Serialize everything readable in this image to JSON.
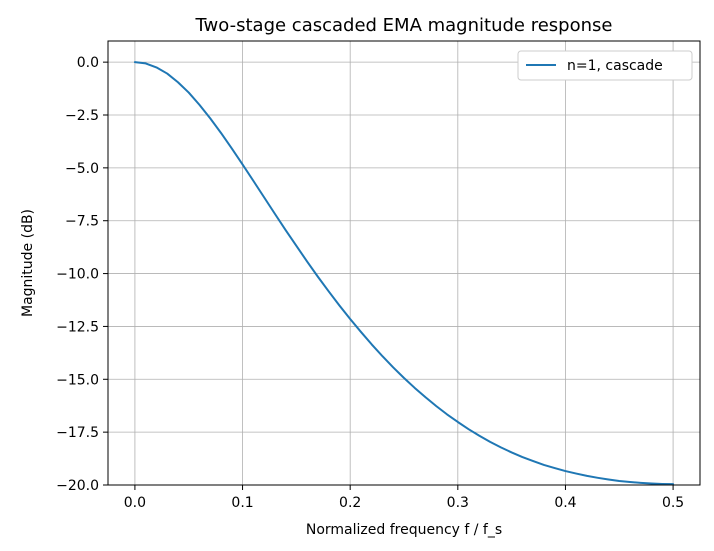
{
  "chart_data": {
    "type": "line",
    "title": "Two-stage cascaded EMA magnitude response",
    "xlabel": "Normalized frequency  f / f_s",
    "ylabel": "Magnitude (dB)",
    "xlim": [
      -0.025,
      0.525
    ],
    "ylim": [
      -20.0,
      1.0
    ],
    "x_ticks": [
      0.0,
      0.1,
      0.2,
      0.3,
      0.4,
      0.5
    ],
    "x_tick_labels": [
      "0.0",
      "0.1",
      "0.2",
      "0.3",
      "0.4",
      "0.5"
    ],
    "y_ticks": [
      0.0,
      -2.5,
      -5.0,
      -7.5,
      -10.0,
      -12.5,
      -15.0,
      -17.5,
      -20.0
    ],
    "y_tick_labels": [
      "0.0",
      "−2.5",
      "−5.0",
      "−7.5",
      "−10.0",
      "−12.5",
      "−15.0",
      "−17.5",
      "−20.0"
    ],
    "grid": true,
    "legend": {
      "position": "top-right",
      "entries": [
        "n=1, cascade"
      ]
    },
    "series": [
      {
        "name": "n=1, cascade",
        "color": "#1f77b4",
        "x": [
          0.0,
          0.01,
          0.02,
          0.03,
          0.04,
          0.05,
          0.06,
          0.07,
          0.08,
          0.09,
          0.1,
          0.11,
          0.12,
          0.13,
          0.14,
          0.15,
          0.16,
          0.17,
          0.18,
          0.19,
          0.2,
          0.21,
          0.22,
          0.23,
          0.24,
          0.25,
          0.26,
          0.27,
          0.28,
          0.29,
          0.3,
          0.31,
          0.32,
          0.33,
          0.34,
          0.35,
          0.36,
          0.37,
          0.38,
          0.39,
          0.4,
          0.41,
          0.42,
          0.43,
          0.44,
          0.45,
          0.46,
          0.47,
          0.48,
          0.49,
          0.5
        ],
        "y": [
          0.0,
          -0.06,
          -0.25,
          -0.54,
          -0.95,
          -1.44,
          -2.02,
          -2.66,
          -3.35,
          -4.08,
          -4.84,
          -5.61,
          -6.39,
          -7.17,
          -7.94,
          -8.69,
          -9.43,
          -10.15,
          -10.84,
          -11.51,
          -12.15,
          -12.76,
          -13.35,
          -13.91,
          -14.44,
          -14.94,
          -15.41,
          -15.85,
          -16.27,
          -16.66,
          -17.02,
          -17.36,
          -17.67,
          -17.96,
          -18.22,
          -18.46,
          -18.68,
          -18.87,
          -19.05,
          -19.2,
          -19.34,
          -19.46,
          -19.57,
          -19.66,
          -19.74,
          -19.81,
          -19.86,
          -19.9,
          -19.93,
          -19.95,
          -19.96
        ]
      }
    ]
  }
}
